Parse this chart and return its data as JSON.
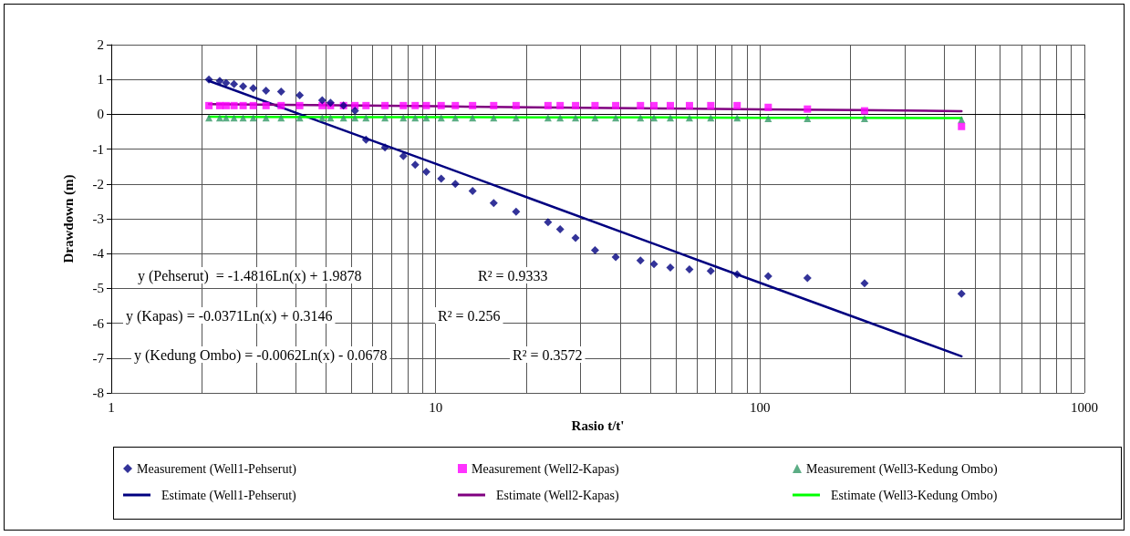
{
  "chart_data": {
    "type": "scatter",
    "xlabel": "Rasio t/t'",
    "ylabel": "Drawdown (m)",
    "log": "x",
    "xlim": [
      1,
      1000
    ],
    "xticks": [
      1,
      10,
      100,
      1000
    ],
    "ylim": [
      -8,
      2
    ],
    "yticks": [
      -8,
      -7,
      -6,
      -5,
      -4,
      -3,
      -2,
      -1,
      0,
      1,
      2
    ],
    "grid": true,
    "legend": "bottom",
    "x": [
      2.0,
      2.16,
      2.26,
      2.39,
      2.55,
      2.74,
      3.0,
      3.34,
      3.81,
      4.47,
      4.74,
      5.2,
      5.64,
      6.1,
      6.98,
      7.95,
      8.65,
      9.36,
      10.4,
      11.5,
      13.0,
      15.1,
      17.7,
      22.2,
      24.2,
      27.0,
      31.0,
      35.9,
      42.8,
      47.1,
      52.9,
      60.6,
      70.5,
      85.0,
      106,
      140,
      210,
      418
    ],
    "series": [
      {
        "name": "Measurement (Well1-Pehserut)",
        "marker": "diamond",
        "color": "#000080",
        "values": [
          1.0,
          0.96,
          0.9,
          0.87,
          0.8,
          0.75,
          0.68,
          0.65,
          0.55,
          0.4,
          0.33,
          0.25,
          0.1,
          -0.73,
          -0.95,
          -1.2,
          -1.45,
          -1.65,
          -1.85,
          -2.0,
          -2.2,
          -2.55,
          -2.8,
          -3.1,
          -3.3,
          -3.55,
          -3.9,
          -4.1,
          -4.2,
          -4.3,
          -4.4,
          -4.45,
          -4.5,
          -4.6,
          -4.65,
          -4.7,
          -4.85,
          -5.15
        ]
      },
      {
        "name": "Measurement (Well2-Kapas)",
        "marker": "square",
        "color": "#ff00ff",
        "values": [
          0.25,
          0.25,
          0.25,
          0.25,
          0.25,
          0.25,
          0.25,
          0.25,
          0.25,
          0.25,
          0.25,
          0.25,
          0.25,
          0.25,
          0.25,
          0.25,
          0.25,
          0.25,
          0.25,
          0.25,
          0.25,
          0.25,
          0.25,
          0.25,
          0.25,
          0.25,
          0.25,
          0.25,
          0.25,
          0.25,
          0.25,
          0.25,
          0.25,
          0.25,
          0.2,
          0.15,
          0.1,
          -0.35
        ]
      },
      {
        "name": "Measurement (Well3-Kedung Ombo)",
        "marker": "triangle",
        "color": "#339966",
        "values": [
          -0.1,
          -0.1,
          -0.1,
          -0.1,
          -0.1,
          -0.1,
          -0.1,
          -0.1,
          -0.1,
          -0.1,
          -0.1,
          -0.1,
          -0.1,
          -0.1,
          -0.1,
          -0.1,
          -0.1,
          -0.1,
          -0.1,
          -0.1,
          -0.1,
          -0.1,
          -0.1,
          -0.1,
          -0.1,
          -0.1,
          -0.1,
          -0.1,
          -0.1,
          -0.1,
          -0.1,
          -0.1,
          -0.1,
          -0.1,
          -0.12,
          -0.12,
          -0.12,
          -0.15
        ]
      },
      {
        "name": "Estimate (Well1-Pehserut)",
        "type": "line",
        "marker": "none",
        "color": "#000080",
        "x": [
          2,
          5,
          10,
          20,
          50,
          100,
          200,
          418
        ],
        "values": [
          0.96,
          -0.4,
          -1.42,
          -2.45,
          -3.81,
          -4.84,
          -5.86,
          -6.95
        ]
      },
      {
        "name": "Estimate (Well2-Kapas)",
        "type": "line",
        "marker": "none",
        "color": "#800080",
        "x": [
          2,
          5,
          10,
          20,
          50,
          100,
          200,
          418
        ],
        "values": [
          0.29,
          0.26,
          0.23,
          0.2,
          0.17,
          0.14,
          0.12,
          0.09
        ]
      },
      {
        "name": "Estimate (Well3-Kedung Ombo)",
        "type": "line",
        "marker": "none",
        "color": "#00ff00",
        "x": [
          2,
          5,
          10,
          20,
          50,
          100,
          200,
          418
        ],
        "values": [
          -0.07,
          -0.08,
          -0.08,
          -0.09,
          -0.09,
          -0.1,
          -0.1,
          -0.11
        ]
      }
    ],
    "annotations": [
      "y (Pehserut)  = -1.4816Ln(x) + 1.9878",
      "R² = 0.9333",
      "y (Kapas) = -0.0371Ln(x) + 0.3146",
      "R² = 0.256",
      "y (Kedung Ombo) = -0.0062Ln(x) - 0.0678",
      "R² = 0.3572"
    ]
  }
}
